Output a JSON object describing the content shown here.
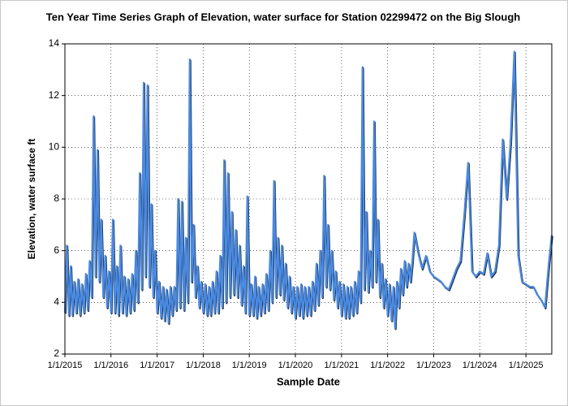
{
  "chart_data": {
    "type": "line",
    "title": "Ten Year Time Series Graph of Elevation, water surface for Station 02299472 on the Big Slough",
    "x_label": "Sample Date",
    "y_label": "Elevation, water surface ft",
    "x": [
      "2015-01-01",
      "2015-01-16",
      "2015-02-01",
      "2015-02-16",
      "2015-03-01",
      "2015-03-16",
      "2015-04-01",
      "2015-04-16",
      "2015-05-01",
      "2015-05-16",
      "2015-06-01",
      "2015-06-16",
      "2015-07-01",
      "2015-07-16",
      "2015-08-01",
      "2015-08-16",
      "2015-09-01",
      "2015-09-16",
      "2015-10-01",
      "2015-10-16",
      "2015-11-01",
      "2015-11-16",
      "2015-12-01",
      "2015-12-16",
      "2016-01-01",
      "2016-01-16",
      "2016-02-01",
      "2016-02-16",
      "2016-03-01",
      "2016-03-16",
      "2016-04-01",
      "2016-04-16",
      "2016-05-01",
      "2016-05-16",
      "2016-06-01",
      "2016-06-16",
      "2016-07-01",
      "2016-07-16",
      "2016-08-01",
      "2016-08-16",
      "2016-09-01",
      "2016-09-16",
      "2016-10-01",
      "2016-10-16",
      "2016-11-01",
      "2016-11-16",
      "2016-12-01",
      "2016-12-16",
      "2017-01-01",
      "2017-01-16",
      "2017-02-01",
      "2017-02-16",
      "2017-03-01",
      "2017-03-16",
      "2017-04-01",
      "2017-04-16",
      "2017-05-01",
      "2017-05-16",
      "2017-06-01",
      "2017-06-16",
      "2017-07-01",
      "2017-07-16",
      "2017-08-01",
      "2017-08-16",
      "2017-09-01",
      "2017-09-16",
      "2017-10-01",
      "2017-10-16",
      "2017-11-01",
      "2017-11-16",
      "2017-12-01",
      "2017-12-16",
      "2018-01-01",
      "2018-01-16",
      "2018-02-01",
      "2018-02-16",
      "2018-03-01",
      "2018-03-16",
      "2018-04-01",
      "2018-04-16",
      "2018-05-01",
      "2018-05-16",
      "2018-06-01",
      "2018-06-16",
      "2018-07-01",
      "2018-07-16",
      "2018-08-01",
      "2018-08-16",
      "2018-09-01",
      "2018-09-16",
      "2018-10-01",
      "2018-10-16",
      "2018-11-01",
      "2018-11-16",
      "2018-12-01",
      "2018-12-16",
      "2019-01-01",
      "2019-01-16",
      "2019-02-01",
      "2019-02-16",
      "2019-03-01",
      "2019-03-16",
      "2019-04-01",
      "2019-04-16",
      "2019-05-01",
      "2019-05-16",
      "2019-06-01",
      "2019-06-16",
      "2019-07-01",
      "2019-07-16",
      "2019-08-01",
      "2019-08-16",
      "2019-09-01",
      "2019-09-16",
      "2019-10-01",
      "2019-10-16",
      "2019-11-01",
      "2019-11-16",
      "2019-12-01",
      "2019-12-16",
      "2020-01-01",
      "2020-01-16",
      "2020-02-01",
      "2020-02-16",
      "2020-03-01",
      "2020-03-16",
      "2020-04-01",
      "2020-04-16",
      "2020-05-01",
      "2020-05-16",
      "2020-06-01",
      "2020-06-16",
      "2020-07-01",
      "2020-07-16",
      "2020-08-01",
      "2020-08-16",
      "2020-09-01",
      "2020-09-16",
      "2020-10-01",
      "2020-10-16",
      "2020-11-01",
      "2020-11-16",
      "2020-12-01",
      "2020-12-16",
      "2021-01-01",
      "2021-01-16",
      "2021-02-01",
      "2021-02-16",
      "2021-03-01",
      "2021-03-16",
      "2021-04-01",
      "2021-04-16",
      "2021-05-01",
      "2021-05-16",
      "2021-06-01",
      "2021-06-16",
      "2021-07-01",
      "2021-07-16",
      "2021-08-01",
      "2021-08-16",
      "2021-09-01",
      "2021-09-16",
      "2021-10-01",
      "2021-10-16",
      "2021-11-01",
      "2021-11-16",
      "2021-12-01",
      "2021-12-16",
      "2022-01-01",
      "2022-01-16",
      "2022-02-01",
      "2022-02-16",
      "2022-03-01",
      "2022-03-16",
      "2022-04-01",
      "2022-04-16",
      "2022-05-01",
      "2022-05-16",
      "2022-06-01",
      "2022-06-16",
      "2022-07-01",
      "2022-07-16",
      "2022-08-01",
      "2022-09-01",
      "2022-10-01",
      "2022-11-01",
      "2022-12-01",
      "2023-01-01",
      "2023-02-01",
      "2023-03-01",
      "2023-04-01",
      "2023-05-01",
      "2023-06-01",
      "2023-07-01",
      "2023-08-01",
      "2023-09-01",
      "2023-10-01",
      "2023-11-01",
      "2023-12-01",
      "2024-01-01",
      "2024-02-01",
      "2024-03-01",
      "2024-04-01",
      "2024-05-01",
      "2024-06-01",
      "2024-07-01",
      "2024-08-01",
      "2024-09-01",
      "2024-10-01",
      "2024-11-01",
      "2024-12-01",
      "2025-01-01",
      "2025-02-01",
      "2025-03-01",
      "2025-04-01",
      "2025-05-01",
      "2025-06-01",
      "2025-07-01",
      "2025-07-25"
    ],
    "series": [
      {
        "color": "#4a8ae2",
        "values": [
          3.6,
          6.2,
          3.5,
          5.4,
          3.5,
          4.8,
          3.6,
          4.9,
          3.5,
          4.7,
          3.6,
          5.1,
          3.7,
          5.6,
          4.2,
          11.2,
          5.0,
          9.9,
          4.8,
          7.2,
          4.2,
          5.8,
          3.8,
          5.2,
          3.6,
          7.2,
          3.6,
          5.4,
          3.5,
          6.2,
          3.6,
          5.0,
          3.5,
          4.9,
          3.6,
          5.1,
          3.7,
          6.0,
          4.0,
          9.0,
          4.5,
          12.5,
          5.0,
          12.4,
          4.6,
          7.8,
          4.2,
          6.0,
          3.6,
          4.8,
          3.4,
          4.6,
          3.3,
          4.5,
          3.2,
          4.6,
          3.5,
          4.6,
          3.7,
          8.0,
          3.8,
          7.9,
          3.7,
          6.5,
          4.0,
          13.4,
          4.8,
          7.0,
          4.2,
          5.4,
          3.8,
          4.8,
          3.6,
          4.7,
          3.5,
          4.6,
          3.5,
          4.8,
          3.6,
          5.2,
          3.6,
          5.8,
          3.8,
          9.5,
          4.0,
          9.0,
          4.2,
          7.5,
          4.3,
          6.8,
          4.2,
          6.2,
          3.9,
          5.4,
          3.6,
          8.1,
          3.5,
          4.7,
          3.5,
          5.0,
          3.4,
          4.6,
          3.5,
          4.7,
          3.6,
          5.1,
          3.7,
          6.0,
          4.0,
          8.7,
          4.2,
          6.5,
          4.3,
          6.2,
          4.1,
          5.5,
          3.8,
          5.0,
          3.6,
          4.6,
          3.4,
          4.6,
          3.5,
          4.7,
          3.4,
          4.6,
          3.5,
          4.6,
          3.5,
          4.8,
          3.7,
          5.5,
          3.9,
          6.0,
          4.2,
          8.9,
          4.6,
          7.0,
          4.5,
          6.0,
          4.1,
          5.2,
          3.8,
          4.8,
          3.5,
          4.7,
          3.4,
          4.6,
          3.4,
          4.6,
          3.5,
          4.8,
          3.6,
          5.2,
          4.0,
          13.1,
          4.5,
          7.5,
          4.4,
          6.0,
          4.6,
          11.0,
          4.8,
          7.2,
          4.2,
          5.5,
          3.8,
          4.9,
          3.5,
          4.7,
          3.3,
          4.6,
          3.0,
          4.8,
          3.8,
          5.3,
          4.3,
          5.6,
          4.6,
          5.5,
          4.8,
          5.6,
          6.7,
          5.9,
          5.3,
          5.8,
          5.2,
          5.0,
          4.9,
          4.8,
          4.6,
          4.5,
          4.9,
          5.3,
          5.6,
          7.4,
          9.4,
          5.2,
          5.0,
          5.2,
          5.1,
          5.9,
          5.0,
          5.2,
          6.2,
          10.3,
          8.0,
          10.2,
          13.7,
          5.8,
          4.8,
          4.7,
          4.6,
          4.6,
          4.3,
          4.1,
          3.8,
          5.5,
          6.6
        ]
      }
    ],
    "xlim": [
      "2015-01-01",
      "2025-07-25"
    ],
    "xticks": [
      {
        "value": "2015-01-01",
        "label": "1/1/2015"
      },
      {
        "value": "2016-01-01",
        "label": "1/1/2016"
      },
      {
        "value": "2017-01-01",
        "label": "1/1/2017"
      },
      {
        "value": "2018-01-01",
        "label": "1/1/2018"
      },
      {
        "value": "2019-01-01",
        "label": "1/1/2019"
      },
      {
        "value": "2020-01-01",
        "label": "1/1/2020"
      },
      {
        "value": "2021-01-01",
        "label": "1/1/2021"
      },
      {
        "value": "2022-01-01",
        "label": "1/1/2022"
      },
      {
        "value": "2023-01-01",
        "label": "1/1/2023"
      },
      {
        "value": "2024-01-01",
        "label": "1/1/2024"
      },
      {
        "value": "2025-01-01",
        "label": "1/1/2025"
      }
    ],
    "ylim": [
      2,
      14
    ],
    "yticks": [
      2,
      4,
      6,
      8,
      10,
      12,
      14
    ],
    "grid": true
  }
}
